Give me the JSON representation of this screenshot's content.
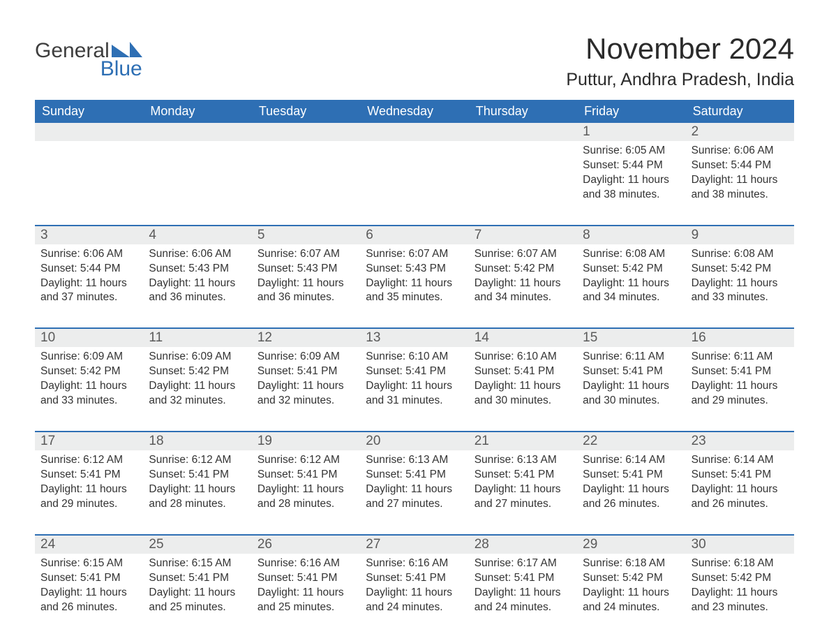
{
  "logo": {
    "line1": "General",
    "line2": "Blue",
    "text_color": "#3e3e3e",
    "accent_color": "#2e6fb4"
  },
  "title": "November 2024",
  "location": "Puttur, Andhra Pradesh, India",
  "colors": {
    "header_bg": "#2e6fb4",
    "header_text": "#ffffff",
    "daynum_bg": "#eceded",
    "daynum_text": "#5a5a5a",
    "body_text": "#333333",
    "rule": "#2e6fb4"
  },
  "day_headers": [
    "Sunday",
    "Monday",
    "Tuesday",
    "Wednesday",
    "Thursday",
    "Friday",
    "Saturday"
  ],
  "weeks": [
    [
      null,
      null,
      null,
      null,
      null,
      {
        "n": "1",
        "sunrise": "6:05 AM",
        "sunset": "5:44 PM",
        "daylight": "11 hours and 38 minutes."
      },
      {
        "n": "2",
        "sunrise": "6:06 AM",
        "sunset": "5:44 PM",
        "daylight": "11 hours and 38 minutes."
      }
    ],
    [
      {
        "n": "3",
        "sunrise": "6:06 AM",
        "sunset": "5:44 PM",
        "daylight": "11 hours and 37 minutes."
      },
      {
        "n": "4",
        "sunrise": "6:06 AM",
        "sunset": "5:43 PM",
        "daylight": "11 hours and 36 minutes."
      },
      {
        "n": "5",
        "sunrise": "6:07 AM",
        "sunset": "5:43 PM",
        "daylight": "11 hours and 36 minutes."
      },
      {
        "n": "6",
        "sunrise": "6:07 AM",
        "sunset": "5:43 PM",
        "daylight": "11 hours and 35 minutes."
      },
      {
        "n": "7",
        "sunrise": "6:07 AM",
        "sunset": "5:42 PM",
        "daylight": "11 hours and 34 minutes."
      },
      {
        "n": "8",
        "sunrise": "6:08 AM",
        "sunset": "5:42 PM",
        "daylight": "11 hours and 34 minutes."
      },
      {
        "n": "9",
        "sunrise": "6:08 AM",
        "sunset": "5:42 PM",
        "daylight": "11 hours and 33 minutes."
      }
    ],
    [
      {
        "n": "10",
        "sunrise": "6:09 AM",
        "sunset": "5:42 PM",
        "daylight": "11 hours and 33 minutes."
      },
      {
        "n": "11",
        "sunrise": "6:09 AM",
        "sunset": "5:42 PM",
        "daylight": "11 hours and 32 minutes."
      },
      {
        "n": "12",
        "sunrise": "6:09 AM",
        "sunset": "5:41 PM",
        "daylight": "11 hours and 32 minutes."
      },
      {
        "n": "13",
        "sunrise": "6:10 AM",
        "sunset": "5:41 PM",
        "daylight": "11 hours and 31 minutes."
      },
      {
        "n": "14",
        "sunrise": "6:10 AM",
        "sunset": "5:41 PM",
        "daylight": "11 hours and 30 minutes."
      },
      {
        "n": "15",
        "sunrise": "6:11 AM",
        "sunset": "5:41 PM",
        "daylight": "11 hours and 30 minutes."
      },
      {
        "n": "16",
        "sunrise": "6:11 AM",
        "sunset": "5:41 PM",
        "daylight": "11 hours and 29 minutes."
      }
    ],
    [
      {
        "n": "17",
        "sunrise": "6:12 AM",
        "sunset": "5:41 PM",
        "daylight": "11 hours and 29 minutes."
      },
      {
        "n": "18",
        "sunrise": "6:12 AM",
        "sunset": "5:41 PM",
        "daylight": "11 hours and 28 minutes."
      },
      {
        "n": "19",
        "sunrise": "6:12 AM",
        "sunset": "5:41 PM",
        "daylight": "11 hours and 28 minutes."
      },
      {
        "n": "20",
        "sunrise": "6:13 AM",
        "sunset": "5:41 PM",
        "daylight": "11 hours and 27 minutes."
      },
      {
        "n": "21",
        "sunrise": "6:13 AM",
        "sunset": "5:41 PM",
        "daylight": "11 hours and 27 minutes."
      },
      {
        "n": "22",
        "sunrise": "6:14 AM",
        "sunset": "5:41 PM",
        "daylight": "11 hours and 26 minutes."
      },
      {
        "n": "23",
        "sunrise": "6:14 AM",
        "sunset": "5:41 PM",
        "daylight": "11 hours and 26 minutes."
      }
    ],
    [
      {
        "n": "24",
        "sunrise": "6:15 AM",
        "sunset": "5:41 PM",
        "daylight": "11 hours and 26 minutes."
      },
      {
        "n": "25",
        "sunrise": "6:15 AM",
        "sunset": "5:41 PM",
        "daylight": "11 hours and 25 minutes."
      },
      {
        "n": "26",
        "sunrise": "6:16 AM",
        "sunset": "5:41 PM",
        "daylight": "11 hours and 25 minutes."
      },
      {
        "n": "27",
        "sunrise": "6:16 AM",
        "sunset": "5:41 PM",
        "daylight": "11 hours and 24 minutes."
      },
      {
        "n": "28",
        "sunrise": "6:17 AM",
        "sunset": "5:41 PM",
        "daylight": "11 hours and 24 minutes."
      },
      {
        "n": "29",
        "sunrise": "6:18 AM",
        "sunset": "5:42 PM",
        "daylight": "11 hours and 24 minutes."
      },
      {
        "n": "30",
        "sunrise": "6:18 AM",
        "sunset": "5:42 PM",
        "daylight": "11 hours and 23 minutes."
      }
    ]
  ],
  "labels": {
    "sunrise": "Sunrise: ",
    "sunset": "Sunset: ",
    "daylight": "Daylight: "
  }
}
